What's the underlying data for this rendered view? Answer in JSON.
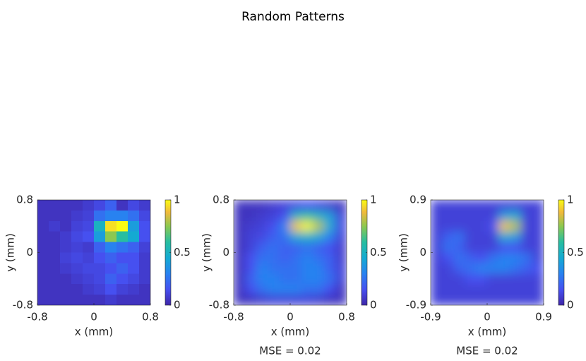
{
  "title": "Random Patterns",
  "chart_data": [
    {
      "type": "heatmap",
      "colormap": "parula",
      "shading": "flat",
      "x_label": "x (mm)",
      "y_label": "y (mm)",
      "xlim": [
        -0.8,
        0.8
      ],
      "ylim": [
        -0.8,
        0.8
      ],
      "xticks": [
        -0.8,
        0,
        0.8
      ],
      "yticks": [
        -0.8,
        0,
        0.8
      ],
      "clim": [
        0,
        1
      ],
      "cticks": [
        0,
        0.5,
        1
      ],
      "values": [
        [
          0.05,
          0.05,
          0.05,
          0.05,
          0.08,
          0.12,
          0.2,
          0.05,
          0.12,
          0.08
        ],
        [
          0.05,
          0.05,
          0.05,
          0.08,
          0.1,
          0.25,
          0.3,
          0.3,
          0.25,
          0.12
        ],
        [
          0.05,
          0.08,
          0.05,
          0.1,
          0.12,
          0.5,
          0.95,
          1,
          0.4,
          0.15
        ],
        [
          0.05,
          0.05,
          0.08,
          0.12,
          0.15,
          0.4,
          0.75,
          0.6,
          0.45,
          0.15
        ],
        [
          0.05,
          0.05,
          0.08,
          0.1,
          0.08,
          0.2,
          0.3,
          0.25,
          0.2,
          0.1
        ],
        [
          0.05,
          0.05,
          0.1,
          0.12,
          0.1,
          0.15,
          0.2,
          0.15,
          0.15,
          0.08
        ],
        [
          0.05,
          0.05,
          0.08,
          0.1,
          0.12,
          0.12,
          0.15,
          0.2,
          0.15,
          0.08
        ],
        [
          0.05,
          0.05,
          0.05,
          0.08,
          0.1,
          0.12,
          0.2,
          0.15,
          0.12,
          0.08
        ],
        [
          0.05,
          0.05,
          0.05,
          0.05,
          0.08,
          0.1,
          0.15,
          0.1,
          0.08,
          0.05
        ],
        [
          0.05,
          0.05,
          0.05,
          0.05,
          0.05,
          0.05,
          0.08,
          0.05,
          0.05,
          0.05
        ]
      ]
    },
    {
      "type": "heatmap",
      "colormap": "parula",
      "shading": "interp",
      "x_label": "x (mm)",
      "y_label": "y (mm)",
      "annotation": "MSE = 0.02",
      "xlim": [
        -0.8,
        0.8
      ],
      "ylim": [
        -0.8,
        0.8
      ],
      "xticks": [
        -0.8,
        0,
        0.8
      ],
      "yticks": [
        -0.8,
        0,
        0.8
      ],
      "clim": [
        0,
        1
      ],
      "cticks": [
        0,
        0.5,
        1
      ],
      "values": [
        [
          0.05,
          0.05,
          0.05,
          0.08,
          0.1,
          0.12,
          0.15,
          0.12,
          0.08,
          0.05
        ],
        [
          0.05,
          0.05,
          0.08,
          0.1,
          0.15,
          0.5,
          0.6,
          0.5,
          0.4,
          0.1
        ],
        [
          0.05,
          0.08,
          0.1,
          0.15,
          0.3,
          0.9,
          1,
          0.8,
          0.45,
          0.12
        ],
        [
          0.05,
          0.1,
          0.12,
          0.2,
          0.25,
          0.45,
          0.5,
          0.45,
          0.3,
          0.1
        ],
        [
          0.05,
          0.1,
          0.2,
          0.25,
          0.2,
          0.2,
          0.25,
          0.2,
          0.15,
          0.08
        ],
        [
          0.05,
          0.15,
          0.25,
          0.25,
          0.2,
          0.25,
          0.3,
          0.25,
          0.2,
          0.08
        ],
        [
          0.05,
          0.15,
          0.3,
          0.25,
          0.25,
          0.25,
          0.3,
          0.3,
          0.2,
          0.1
        ],
        [
          0.05,
          0.2,
          0.3,
          0.3,
          0.25,
          0.25,
          0.3,
          0.3,
          0.25,
          0.1
        ],
        [
          0.05,
          0.15,
          0.25,
          0.3,
          0.3,
          0.3,
          0.25,
          0.25,
          0.15,
          0.05
        ],
        [
          0.05,
          0.05,
          0.08,
          0.1,
          0.1,
          0.1,
          0.1,
          0.08,
          0.05,
          0.05
        ]
      ]
    },
    {
      "type": "heatmap",
      "colormap": "parula",
      "shading": "interp",
      "x_label": "x (mm)",
      "y_label": "y (mm)",
      "annotation": "MSE = 0.02",
      "xlim": [
        -0.9,
        0.9
      ],
      "ylim": [
        -0.9,
        0.9
      ],
      "xticks": [
        -0.9,
        0,
        0.9
      ],
      "yticks": [
        -0.9,
        0,
        0.9
      ],
      "clim": [
        0,
        1
      ],
      "cticks": [
        0,
        0.5,
        1
      ],
      "values": [
        [
          0.1,
          0.1,
          0.1,
          0.1,
          0.1,
          0.1,
          0.1,
          0.1,
          0.1,
          0.1
        ],
        [
          0.1,
          0.1,
          0.1,
          0.1,
          0.1,
          0.1,
          0.4,
          0.45,
          0.1,
          0.1
        ],
        [
          0.1,
          0.1,
          0.1,
          0.1,
          0.1,
          0.15,
          0.9,
          0.8,
          0.1,
          0.1
        ],
        [
          0.1,
          0.2,
          0.25,
          0.1,
          0.1,
          0.1,
          0.45,
          0.4,
          0.1,
          0.1
        ],
        [
          0.1,
          0.25,
          0.2,
          0.1,
          0.1,
          0.1,
          0.15,
          0.15,
          0.1,
          0.1
        ],
        [
          0.1,
          0.15,
          0.25,
          0.2,
          0.15,
          0.25,
          0.3,
          0.3,
          0.25,
          0.1
        ],
        [
          0.1,
          0.1,
          0.2,
          0.25,
          0.3,
          0.3,
          0.3,
          0.25,
          0.2,
          0.15
        ],
        [
          0.1,
          0.1,
          0.1,
          0.15,
          0.15,
          0.1,
          0.1,
          0.1,
          0.1,
          0.1
        ],
        [
          0.1,
          0.1,
          0.1,
          0.1,
          0.1,
          0.1,
          0.1,
          0.1,
          0.1,
          0.1
        ],
        [
          0.1,
          0.1,
          0.1,
          0.1,
          0.1,
          0.1,
          0.1,
          0.1,
          0.1,
          0.1
        ]
      ]
    }
  ]
}
